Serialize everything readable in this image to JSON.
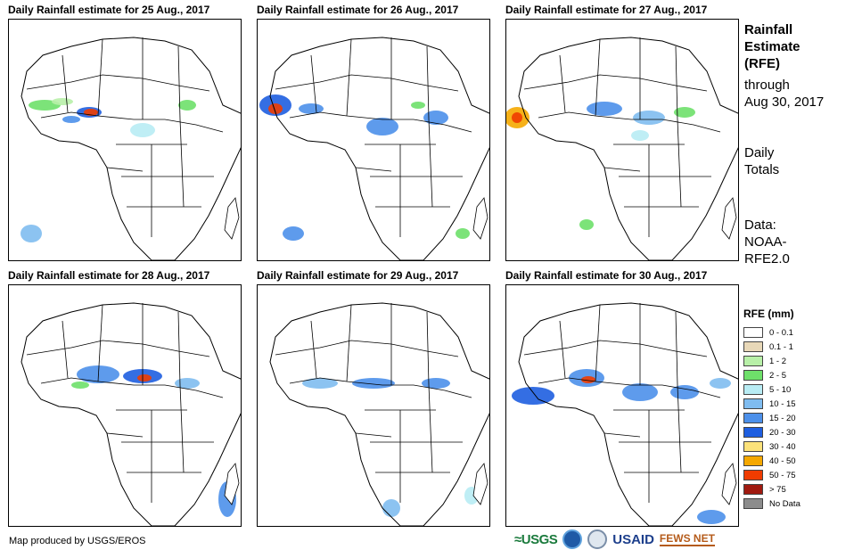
{
  "panels": [
    {
      "title": "Daily Rainfall estimate for 25 Aug., 2017"
    },
    {
      "title": "Daily Rainfall estimate for 26 Aug., 2017"
    },
    {
      "title": "Daily Rainfall estimate for 27 Aug., 2017"
    },
    {
      "title": "Daily Rainfall estimate for 28 Aug., 2017"
    },
    {
      "title": "Daily Rainfall estimate for 29 Aug., 2017"
    },
    {
      "title": "Daily Rainfall estimate for 30 Aug., 2017"
    }
  ],
  "side": {
    "title_lines": [
      "Rainfall",
      "Estimate",
      "(RFE)"
    ],
    "through_lines": [
      "through",
      "Aug 30, 2017"
    ],
    "totals_lines": [
      "Daily",
      "Totals"
    ],
    "data_lines": [
      "Data:",
      "NOAA-",
      "RFE2.0"
    ]
  },
  "legend": {
    "title": "RFE (mm)",
    "items": [
      {
        "label": "0 - 0.1",
        "color": "#ffffff"
      },
      {
        "label": "0.1 - 1",
        "color": "#e8d8b8"
      },
      {
        "label": "1 - 2",
        "color": "#b8f0a8"
      },
      {
        "label": "2 - 5",
        "color": "#6ee06a"
      },
      {
        "label": "5 - 10",
        "color": "#b8ecf4"
      },
      {
        "label": "10 - 15",
        "color": "#7fbcf0"
      },
      {
        "label": "15 - 20",
        "color": "#4c90ea"
      },
      {
        "label": "20 - 30",
        "color": "#1e5ee0"
      },
      {
        "label": "30 - 40",
        "color": "#fce27a"
      },
      {
        "label": "40 - 50",
        "color": "#f5a800"
      },
      {
        "label": "50 - 75",
        "color": "#f03c00"
      },
      {
        "label": "> 75",
        "color": "#a01a10"
      },
      {
        "label": "No Data",
        "color": "#8c8c8c"
      }
    ]
  },
  "credit": "Map produced by USGS/EROS",
  "logos": {
    "usgs": "≈USGS",
    "usaid": "USAID",
    "fews": "FEWS NET"
  }
}
